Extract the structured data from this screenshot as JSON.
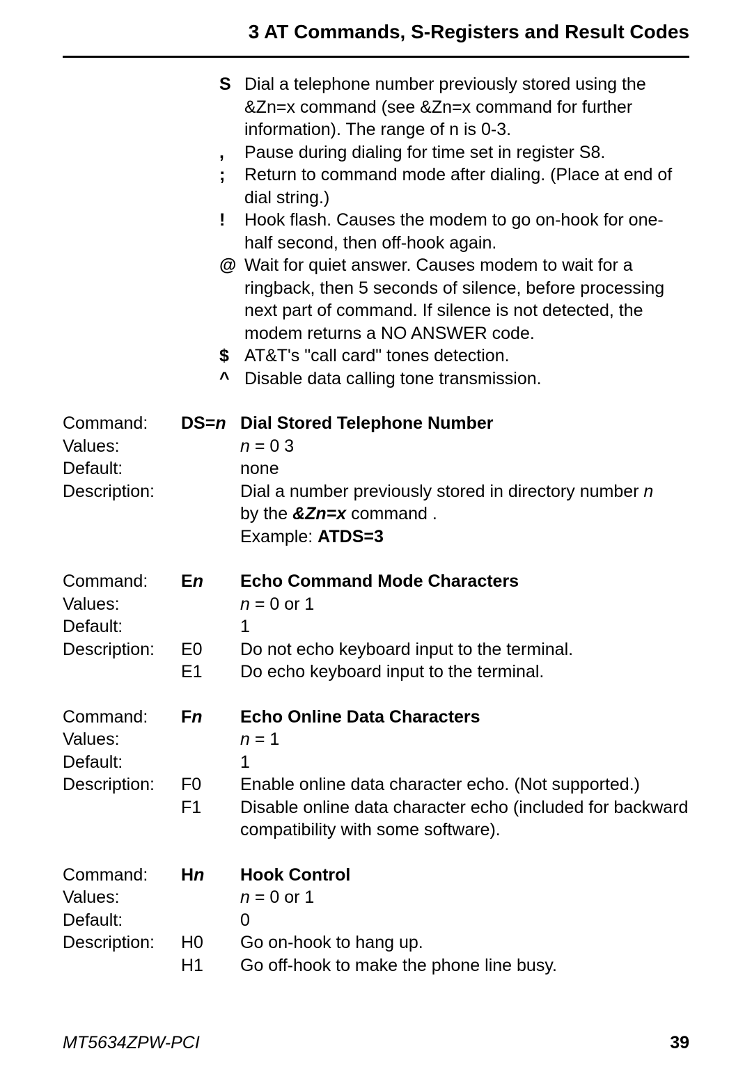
{
  "header": "3  AT Commands, S-Registers and Result Codes",
  "modifiers": [
    {
      "sym": "S",
      "text": "Dial a telephone number previously stored using the &Zn=x command (see &Zn=x command for further information).  The range of n is 0-3."
    },
    {
      "sym": ",",
      "text": "Pause during dialing for time set in register S8."
    },
    {
      "sym": ";",
      "text": "Return to command mode after dialing. (Place at end of dial string.)"
    },
    {
      "sym": "!",
      "text": "Hook flash. Causes the modem to go on-hook for one-half second, then off-hook again."
    },
    {
      "sym": "@",
      "text": "Wait for quiet answer. Causes modem to wait for a ringback, then 5 seconds of silence, before processing next part of command. If silence is not detected, the modem returns a NO ANSWER code."
    },
    {
      "sym": "$",
      "text": "AT&T's \"call card\" tones detection."
    },
    {
      "sym": "^",
      "text": "Disable data calling tone transmission."
    }
  ],
  "labels": {
    "command": "Command:",
    "values": "Values:",
    "default": "Default:",
    "description": "Description:"
  },
  "cmd_ds": {
    "code_pre": "DS=",
    "code_n": "n",
    "title": "Dial Stored Telephone Number",
    "values_pre": "n",
    "values_post": " = 0 3",
    "default": "none",
    "desc1_a": "Dial a number previously stored in directory number ",
    "desc1_n": "n",
    "desc2_a": "by the ",
    "desc2_b": "&Zn=x",
    "desc2_c": " command .",
    "desc3_a": "Example: ",
    "desc3_b": "ATDS=3"
  },
  "cmd_e": {
    "code_pre": "E",
    "code_n": "n",
    "title": "Echo Command Mode Characters",
    "values_pre": "n",
    "values_post": " = 0 or 1",
    "default": "1",
    "r0_code": "E0",
    "r0_text": "Do not echo keyboard input to the terminal.",
    "r1_code": "E1",
    "r1_text": "Do echo keyboard input to the terminal."
  },
  "cmd_f": {
    "code_pre": "F",
    "code_n": "n",
    "title": "Echo Online Data Characters",
    "values_pre": "n",
    "values_post": " = 1",
    "default": "1",
    "r0_code": "F0",
    "r0_text": "Enable online data character echo. (Not supported.)",
    "r1_code": "F1",
    "r1_text": "Disable online data character echo (included for backward compatibility with some software)."
  },
  "cmd_h": {
    "code_pre": "H",
    "code_n": "n",
    "title": "Hook Control",
    "values_pre": "n",
    "values_post": " = 0 or 1",
    "default": "0",
    "r0_code": "H0",
    "r0_text": "Go on-hook to hang up.",
    "r1_code": "H1",
    "r1_text": "Go off-hook to make the phone line busy."
  },
  "footer": {
    "model": "MT5634ZPW-PCI",
    "page": "39"
  }
}
